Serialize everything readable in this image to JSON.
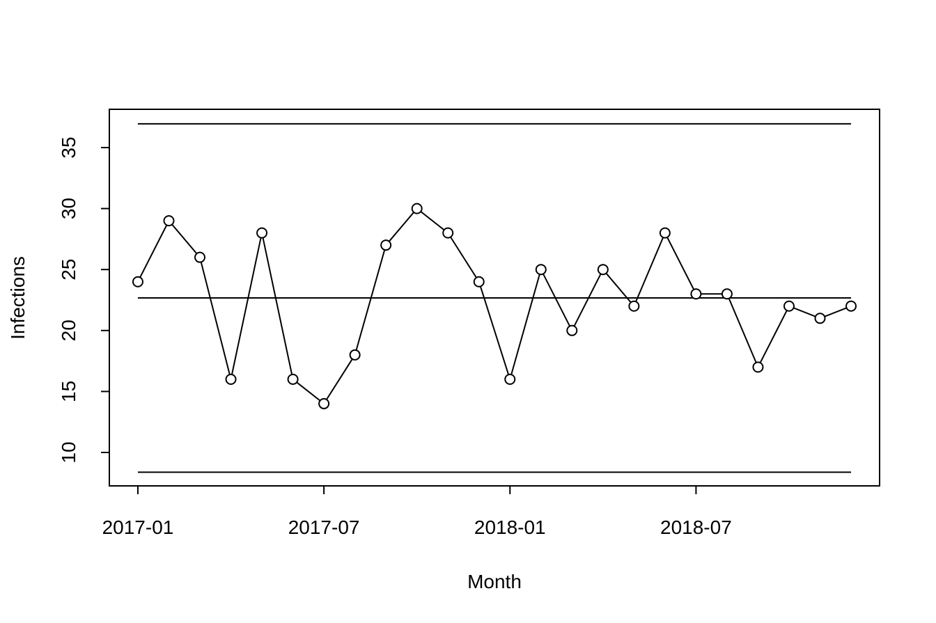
{
  "chart_data": {
    "type": "line",
    "x_label": "Month",
    "y_label": "Infections",
    "x": [
      "2017-01",
      "2017-02",
      "2017-03",
      "2017-04",
      "2017-05",
      "2017-06",
      "2017-07",
      "2017-08",
      "2017-09",
      "2017-10",
      "2017-11",
      "2017-12",
      "2018-01",
      "2018-02",
      "2018-03",
      "2018-04",
      "2018-05",
      "2018-06",
      "2018-07",
      "2018-08",
      "2018-09",
      "2018-10",
      "2018-11",
      "2018-12"
    ],
    "values": [
      24,
      29,
      26,
      16,
      28,
      16,
      14,
      18,
      27,
      30,
      28,
      24,
      16,
      25,
      20,
      25,
      22,
      28,
      23,
      23,
      17,
      22,
      21,
      22
    ],
    "color": "#000000",
    "xticks": [
      "2017-01",
      "2017-07",
      "2018-01",
      "2018-07"
    ],
    "ylim": [
      7.26,
      38.14
    ],
    "yticks": [
      10,
      15,
      20,
      25,
      30,
      35
    ],
    "reference_lines": [
      36.95,
      22.67,
      8.38
    ]
  }
}
